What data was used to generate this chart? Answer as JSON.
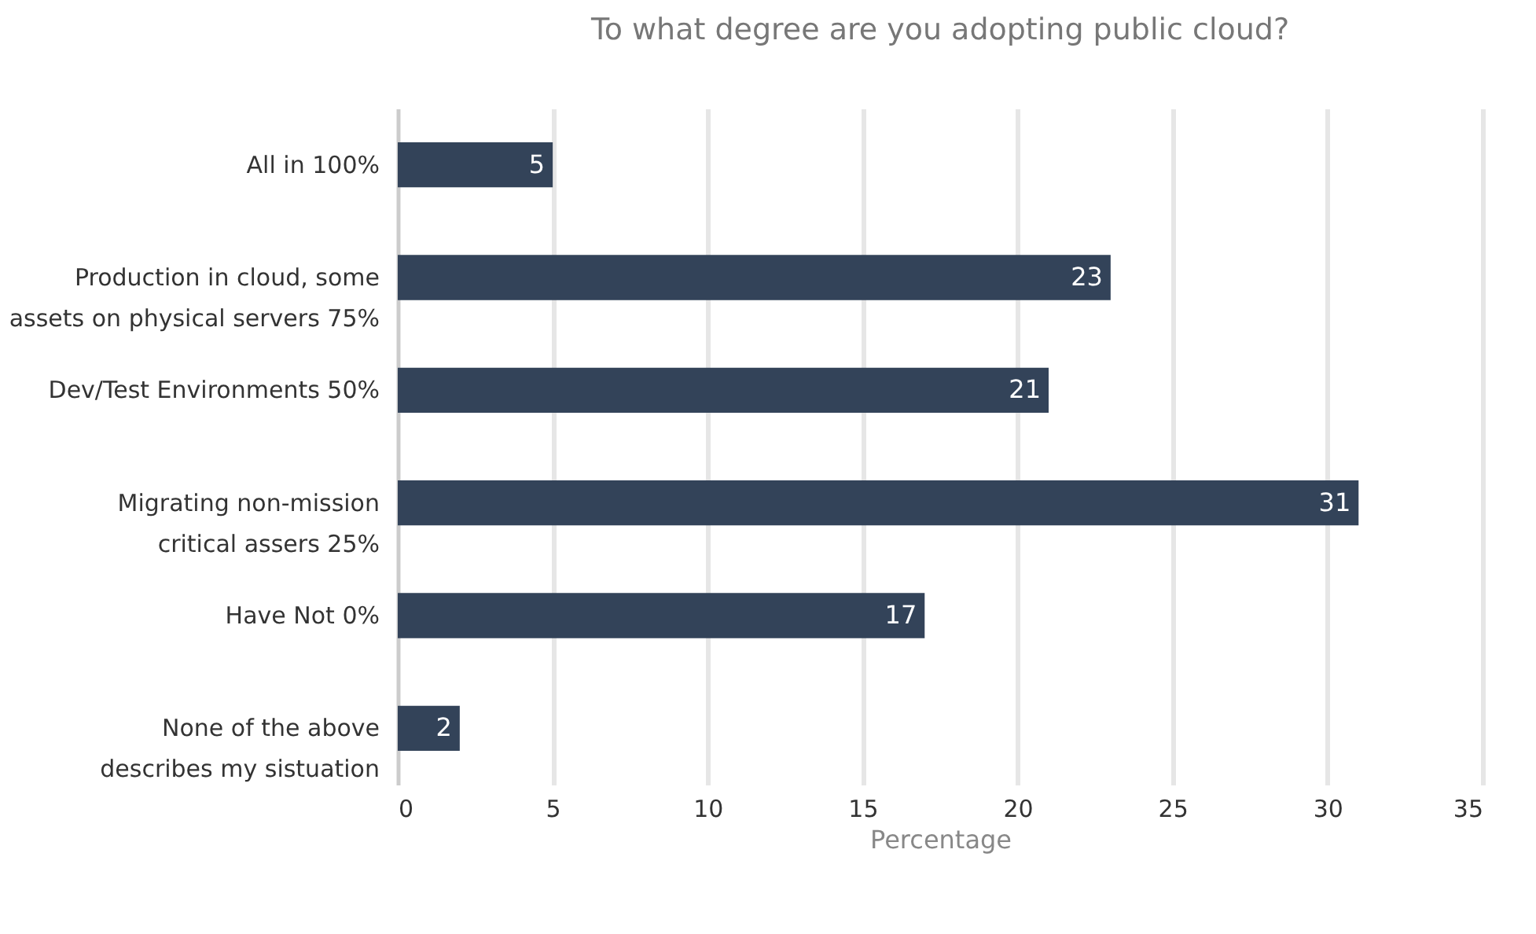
{
  "chart_data": {
    "type": "bar",
    "orientation": "horizontal",
    "title": "To what degree are you adopting public cloud?",
    "xlabel": "Percentage",
    "categories": [
      "All in 100%",
      "Production in cloud, some\nassets on physical servers 75%",
      "Dev/Test Environments 50%",
      "Migrating non-mission\ncritical assers 25%",
      "Have Not 0%",
      "None of the above\ndescribes my sistuation"
    ],
    "values": [
      5,
      23,
      21,
      31,
      17,
      2
    ],
    "color": "#334359",
    "xlim": [
      0,
      35
    ],
    "xticks": [
      0,
      5,
      10,
      15,
      20,
      25,
      30,
      35
    ],
    "grid": "x",
    "data_labels": true
  }
}
